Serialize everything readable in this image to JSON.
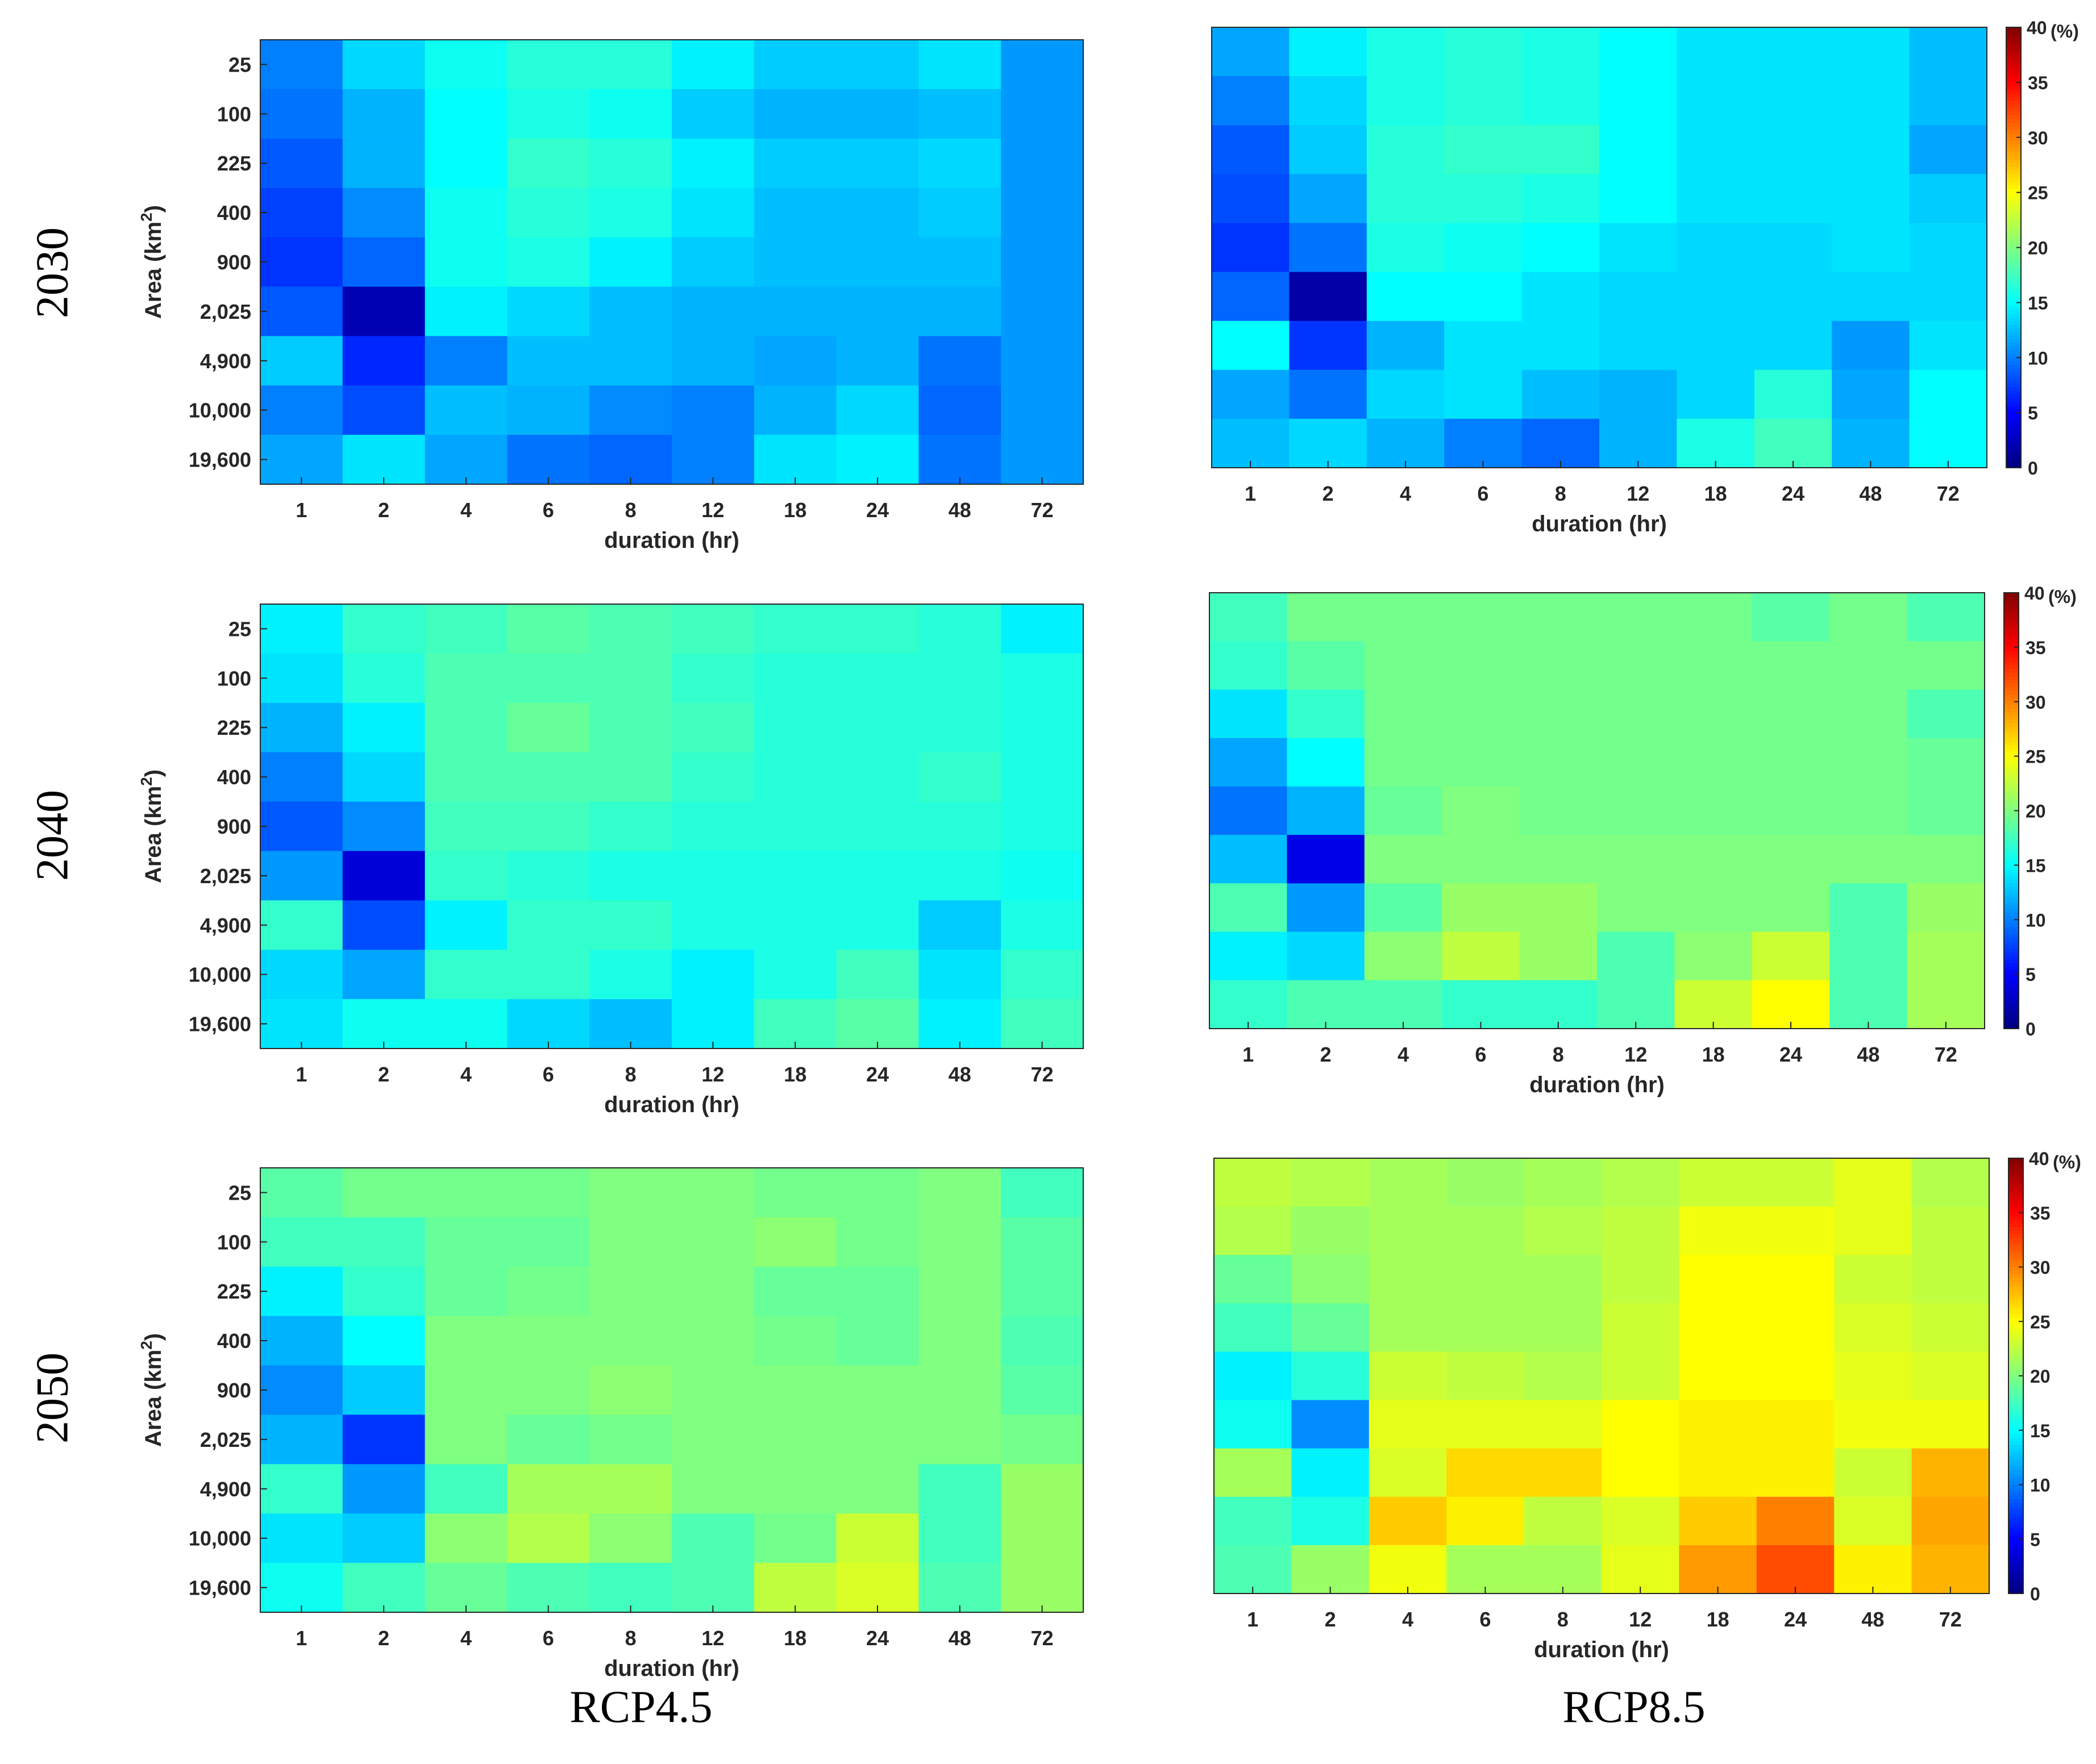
{
  "figure": {
    "row_labels": [
      "2030",
      "2040",
      "2050"
    ],
    "column_labels": [
      "RCP4.5",
      "RCP8.5"
    ]
  },
  "colorbar": {
    "ticks": [
      0,
      5,
      10,
      15,
      20,
      25,
      30,
      35,
      40
    ],
    "top_label": "40",
    "unit": "(%)",
    "range": [
      0,
      40
    ],
    "colormap": "jet"
  },
  "chart_data": [
    {
      "type": "heatmap",
      "title": "",
      "scenario": "RCP4.5",
      "year": "2030",
      "xlabel": "duration (hr)",
      "ylabel_main": "Area (km",
      "ylabel_sup": "2",
      "ylabel_end": ")",
      "x_ticks": [
        "1",
        "2",
        "4",
        "6",
        "8",
        "12",
        "18",
        "24",
        "48",
        "72"
      ],
      "y_ticks": [
        "25",
        "100",
        "225",
        "400",
        "900",
        "2,025",
        "4,900",
        "10,000",
        "19,600"
      ],
      "colorbar": false,
      "values": [
        [
          10,
          13.5,
          15.5,
          16.5,
          16.5,
          14.5,
          13,
          13,
          14,
          11
        ],
        [
          9.5,
          12,
          15,
          16,
          15.5,
          13,
          12,
          12,
          12.5,
          11
        ],
        [
          8.5,
          12,
          15,
          17,
          16.5,
          14.5,
          13,
          13,
          13.5,
          11
        ],
        [
          7.5,
          10.5,
          15.5,
          16.5,
          16,
          14,
          12.5,
          12.5,
          13,
          11
        ],
        [
          7,
          9,
          15.5,
          16,
          14.5,
          13,
          12.5,
          12.5,
          12.5,
          11
        ],
        [
          8.5,
          2,
          14.5,
          13.5,
          12.5,
          12,
          12,
          12,
          12,
          11
        ],
        [
          13,
          6.5,
          10,
          12.5,
          12.5,
          12,
          11.5,
          12,
          9.5,
          11
        ],
        [
          10,
          8,
          12.5,
          12,
          10.5,
          10,
          12,
          13.5,
          9,
          11
        ],
        [
          11.5,
          14,
          11.5,
          9.5,
          9,
          10,
          14,
          14.5,
          9.5,
          11
        ]
      ]
    },
    {
      "type": "heatmap",
      "title": "",
      "scenario": "RCP8.5",
      "year": "2030",
      "xlabel": "duration (hr)",
      "ylabel_main": "",
      "ylabel_sup": "",
      "ylabel_end": "",
      "x_ticks": [
        "1",
        "2",
        "4",
        "6",
        "8",
        "12",
        "18",
        "24",
        "48",
        "72"
      ],
      "y_ticks": [],
      "colorbar": true,
      "values": [
        [
          11.5,
          14.5,
          16,
          16.5,
          16,
          15,
          14,
          14,
          14,
          12.5
        ],
        [
          10,
          13.5,
          16,
          16.5,
          16,
          15,
          14,
          14,
          14,
          12.5
        ],
        [
          8.5,
          13,
          16.5,
          17,
          17,
          15,
          14,
          14,
          14,
          11.5
        ],
        [
          8,
          11.5,
          16.5,
          16.5,
          16,
          15,
          14,
          14,
          14,
          13
        ],
        [
          7,
          9.5,
          16,
          15.5,
          15,
          14,
          13.5,
          13.5,
          14,
          13.5
        ],
        [
          9,
          1.5,
          15,
          15,
          14,
          13.5,
          13.5,
          13.5,
          13.5,
          13.5
        ],
        [
          15,
          7,
          12,
          14,
          14,
          13.5,
          13.5,
          13.5,
          11,
          14
        ],
        [
          11.5,
          9.5,
          13.5,
          14,
          12.5,
          12,
          13.5,
          16.5,
          11.5,
          15
        ],
        [
          12.5,
          13.5,
          12,
          10,
          9,
          12,
          16,
          17.5,
          12,
          15
        ]
      ]
    },
    {
      "type": "heatmap",
      "title": "",
      "scenario": "RCP4.5",
      "year": "2040",
      "xlabel": "duration (hr)",
      "ylabel_main": "Area (km",
      "ylabel_sup": "2",
      "ylabel_end": ")",
      "x_ticks": [
        "1",
        "2",
        "4",
        "6",
        "8",
        "12",
        "18",
        "24",
        "48",
        "72"
      ],
      "y_ticks": [
        "25",
        "100",
        "225",
        "400",
        "900",
        "2,025",
        "4,900",
        "10,000",
        "19,600"
      ],
      "colorbar": false,
      "values": [
        [
          14.5,
          17,
          17.5,
          18.5,
          18,
          17.5,
          17,
          17,
          16.5,
          14.5
        ],
        [
          14,
          16.5,
          18,
          18,
          18,
          17,
          16.5,
          16.5,
          16.5,
          16
        ],
        [
          12,
          14.5,
          18,
          19,
          18,
          17.5,
          16.5,
          16.5,
          16.5,
          16
        ],
        [
          10,
          13.5,
          18,
          18,
          18,
          17,
          16.5,
          16.5,
          17,
          16
        ],
        [
          8.5,
          10.5,
          17.5,
          17.5,
          17,
          16.5,
          16.5,
          16.5,
          16.5,
          16
        ],
        [
          11,
          3.5,
          17,
          16.5,
          16,
          16,
          16,
          16,
          16,
          15.5
        ],
        [
          17,
          8,
          14.5,
          17,
          17,
          16,
          16,
          16,
          13,
          16
        ],
        [
          13.5,
          11.5,
          17,
          17,
          16,
          14.5,
          16,
          17.5,
          14,
          17
        ],
        [
          14,
          15.5,
          15.5,
          13.5,
          12.5,
          14.5,
          17.5,
          18.5,
          14.5,
          17.5
        ]
      ]
    },
    {
      "type": "heatmap",
      "title": "",
      "scenario": "RCP8.5",
      "year": "2040",
      "xlabel": "duration (hr)",
      "ylabel_main": "",
      "ylabel_sup": "",
      "ylabel_end": "",
      "x_ticks": [
        "1",
        "2",
        "4",
        "6",
        "8",
        "12",
        "18",
        "24",
        "48",
        "72"
      ],
      "y_ticks": [],
      "colorbar": true,
      "values": [
        [
          17.5,
          19.5,
          19.5,
          19.5,
          19.5,
          19.5,
          19.5,
          18.5,
          19.5,
          18
        ],
        [
          17,
          18.5,
          19.5,
          19.5,
          19.5,
          19.5,
          19.5,
          19.5,
          19.5,
          19.5
        ],
        [
          14,
          17,
          19.5,
          19.5,
          19.5,
          19.5,
          19.5,
          19.5,
          19.5,
          18
        ],
        [
          11.5,
          15,
          19.5,
          19.5,
          19.5,
          19.5,
          19.5,
          19.5,
          19.5,
          19
        ],
        [
          9.5,
          12,
          19,
          20,
          19.5,
          19.5,
          19.5,
          19.5,
          19.5,
          19
        ],
        [
          12.5,
          4,
          20,
          20,
          20,
          20,
          20,
          20,
          20,
          20
        ],
        [
          18,
          11,
          18.5,
          21,
          21,
          20,
          20,
          20,
          18,
          21
        ],
        [
          14.5,
          13.5,
          20.5,
          22.5,
          21,
          18,
          20.5,
          23,
          18,
          21.5
        ],
        [
          17,
          18,
          18,
          17,
          17,
          18,
          23,
          25,
          18,
          21.5
        ]
      ]
    },
    {
      "type": "heatmap",
      "title": "",
      "scenario": "RCP4.5",
      "year": "2050",
      "xlabel": "duration (hr)",
      "ylabel_main": "Area (km",
      "ylabel_sup": "2",
      "ylabel_end": ")",
      "x_ticks": [
        "1",
        "2",
        "4",
        "6",
        "8",
        "12",
        "18",
        "24",
        "48",
        "72"
      ],
      "y_ticks": [
        "25",
        "100",
        "225",
        "400",
        "900",
        "2,025",
        "4,900",
        "10,000",
        "19,600"
      ],
      "colorbar": false,
      "values": [
        [
          18.5,
          19.5,
          19.5,
          19.5,
          20,
          20,
          19.5,
          19.5,
          20,
          17.5
        ],
        [
          17.5,
          17.5,
          19,
          19,
          20,
          20,
          20.5,
          19.5,
          20,
          18.5
        ],
        [
          14.5,
          17,
          19,
          19.5,
          20,
          20,
          19,
          19,
          20,
          18.5
        ],
        [
          12,
          15,
          20,
          20,
          20,
          20,
          19.5,
          19,
          20,
          18
        ],
        [
          10.5,
          13,
          20,
          20,
          20.5,
          20,
          20,
          20,
          20,
          18.5
        ],
        [
          12,
          7,
          20,
          19,
          19.5,
          20,
          20,
          20,
          20,
          19.5
        ],
        [
          17,
          11,
          17.5,
          21.5,
          21.5,
          20,
          20,
          20,
          17.5,
          21
        ],
        [
          14,
          13,
          20.5,
          22,
          20.5,
          18,
          19.5,
          23,
          17.5,
          21
        ],
        [
          15.5,
          17.5,
          19,
          18,
          17.5,
          18,
          22.5,
          23.5,
          18,
          21
        ]
      ]
    },
    {
      "type": "heatmap",
      "title": "",
      "scenario": "RCP8.5",
      "year": "2050",
      "xlabel": "duration (hr)",
      "ylabel_main": "",
      "ylabel_sup": "",
      "ylabel_end": "",
      "x_ticks": [
        "1",
        "2",
        "4",
        "6",
        "8",
        "12",
        "18",
        "24",
        "48",
        "72"
      ],
      "y_ticks": [],
      "colorbar": true,
      "values": [
        [
          22.5,
          22,
          21.5,
          21,
          21.5,
          22,
          23,
          23,
          24,
          22
        ],
        [
          22,
          21,
          21.5,
          21.5,
          22,
          22.5,
          24.5,
          24.5,
          24,
          22.5
        ],
        [
          19,
          20.5,
          21.5,
          21.5,
          21.5,
          22.5,
          25,
          25,
          23,
          22.5
        ],
        [
          17.5,
          19,
          21.5,
          21.5,
          21.5,
          23,
          25,
          25,
          23.5,
          23
        ],
        [
          14.5,
          16.5,
          23,
          22.5,
          22,
          23,
          25,
          25,
          24,
          23.5
        ],
        [
          15.5,
          10.5,
          24,
          24,
          24,
          25,
          25.5,
          25.5,
          24.5,
          24.5
        ],
        [
          21.5,
          14.5,
          23.5,
          26.5,
          26.5,
          25,
          25.5,
          25.5,
          23,
          28
        ],
        [
          17.5,
          16,
          27,
          25.5,
          22.5,
          23.5,
          27,
          30,
          23.5,
          28.5
        ],
        [
          18,
          21,
          24.5,
          21.5,
          21.5,
          24,
          29,
          32,
          25.5,
          28
        ]
      ]
    }
  ]
}
